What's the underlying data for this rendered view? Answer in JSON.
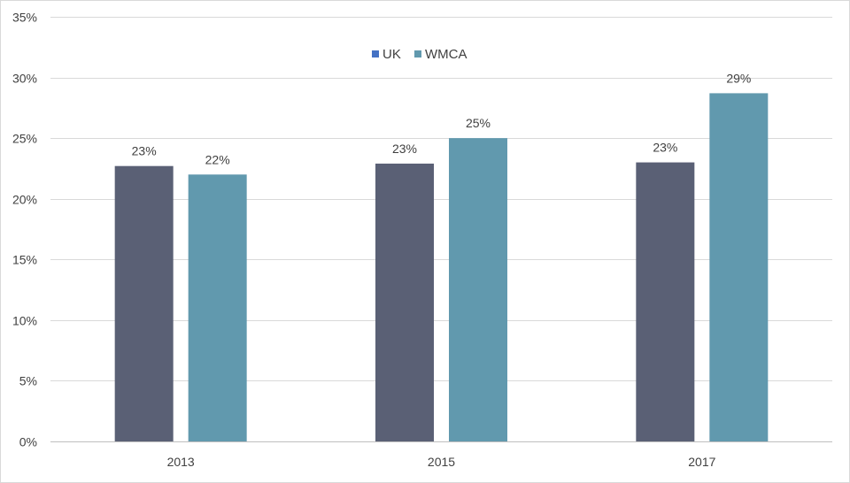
{
  "chart_data": {
    "type": "bar",
    "title": "",
    "xlabel": "",
    "ylabel": "",
    "categories": [
      "2013",
      "2015",
      "2017"
    ],
    "series": [
      {
        "name": "UK",
        "values": [
          0.227,
          0.229,
          0.23
        ],
        "labels": [
          "23%",
          "23%",
          "23%"
        ],
        "color": "#5a6075"
      },
      {
        "name": "WMCA",
        "values": [
          0.22,
          0.25,
          0.287
        ],
        "labels": [
          "22%",
          "25%",
          "29%"
        ],
        "color": "#6199ae"
      }
    ],
    "ylim": [
      0,
      0.35
    ],
    "yticks": [
      0,
      0.05,
      0.1,
      0.15,
      0.2,
      0.25,
      0.3,
      0.35
    ],
    "ytick_labels": [
      "0%",
      "5%",
      "10%",
      "15%",
      "20%",
      "25%",
      "30%",
      "35%"
    ],
    "legend": {
      "placement": "top-center",
      "entries": [
        {
          "label": "UK",
          "color": "#4472c4"
        },
        {
          "label": "WMCA",
          "color": "#6199ae"
        }
      ]
    },
    "grid": true
  }
}
